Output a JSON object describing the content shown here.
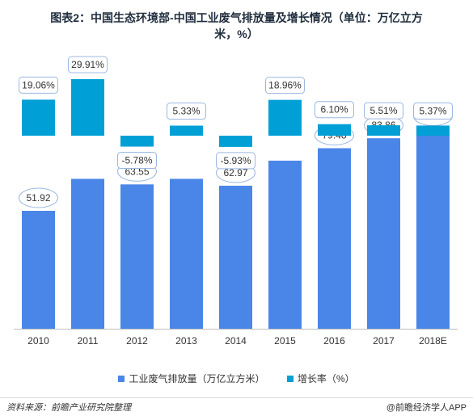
{
  "title_line1": "图表2：中国生态环境部-中国工业废气排放量及增长情况（单位：万亿立方",
  "title_line2": "米，%）",
  "source": "资料来源：前瞻产业研究院整理",
  "brand": "@前瞻经济学人APP",
  "chart_data": {
    "type": "bar",
    "categories": [
      "2010",
      "2011",
      "2012",
      "2013",
      "2014",
      "2015",
      "2016",
      "2017",
      "2018E"
    ],
    "series": [
      {
        "name": "工业废气排放量（万亿立方米）",
        "values": [
          51.92,
          66.0,
          63.55,
          66.0,
          62.97,
          74.0,
          79.48,
          83.86,
          88
        ],
        "labels": [
          "51.92",
          "",
          "63.55",
          "",
          "62.97",
          "",
          "79.48",
          "83.86",
          "88"
        ],
        "color": "#4a86e8"
      },
      {
        "name": "增长率（%）",
        "values": [
          19.06,
          29.91,
          -5.78,
          5.33,
          -5.93,
          18.96,
          6.1,
          5.51,
          5.37
        ],
        "labels": [
          "19.06%",
          "29.91%",
          "-5.78%",
          "5.33%",
          "-5.93%",
          "18.96%",
          "6.10%",
          "5.51%",
          "5.37%"
        ],
        "color": "#00a0d6"
      }
    ],
    "legend_position": "bottom",
    "grid": false
  }
}
